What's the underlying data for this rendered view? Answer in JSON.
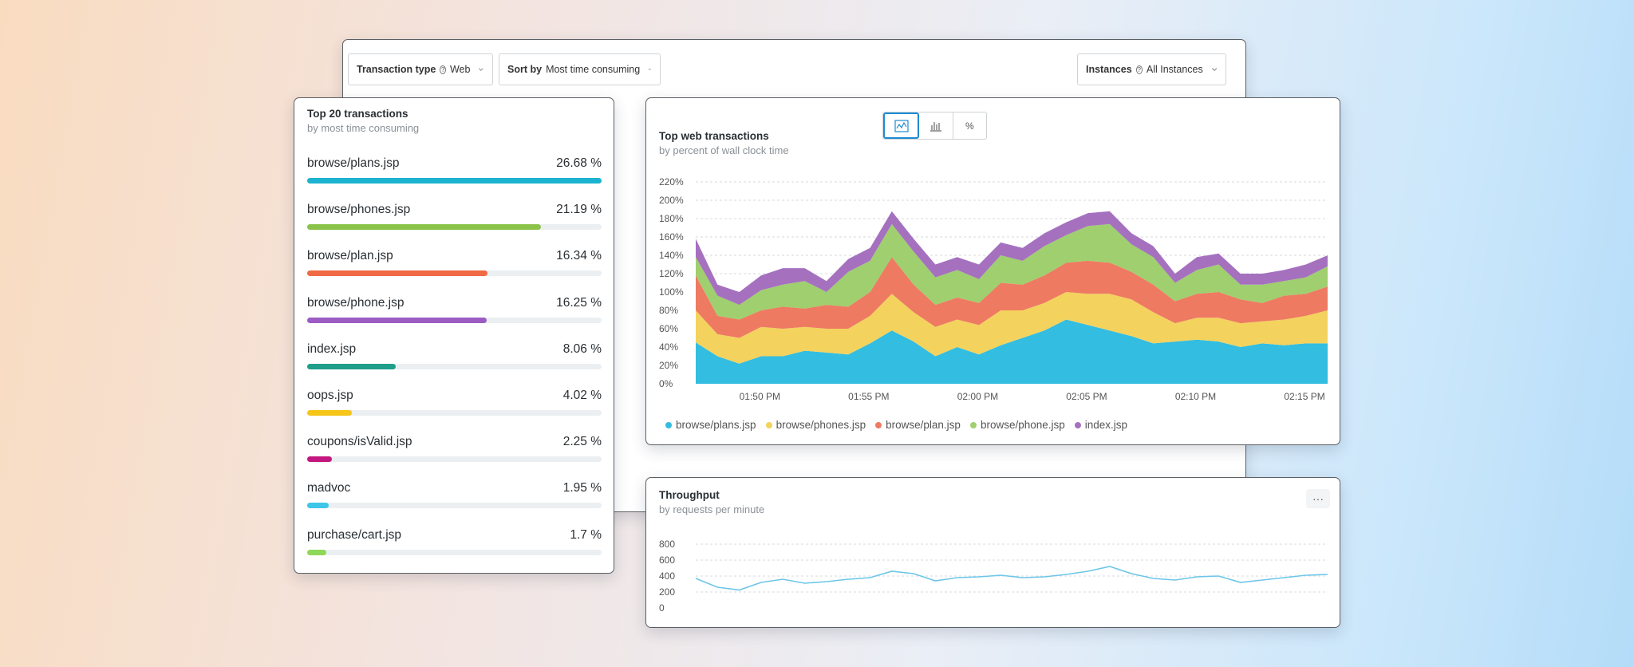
{
  "filters": {
    "transaction_type_label": "Transaction type",
    "transaction_type_value": "Web",
    "sort_by_label": "Sort by",
    "sort_by_value": "Most time consuming",
    "instances_label": "Instances",
    "instances_value": "All Instances"
  },
  "top_transactions": {
    "title": "Top 20 transactions",
    "subtitle": "by most time consuming",
    "items": [
      {
        "name": "browse/plans.jsp",
        "pct_label": "26.68 %",
        "fill": 1.0,
        "color": "#1bb3cf"
      },
      {
        "name": "browse/phones.jsp",
        "pct_label": "21.19 %",
        "fill": 0.794,
        "color": "#8bc34a"
      },
      {
        "name": "browse/plan.jsp",
        "pct_label": "16.34 %",
        "fill": 0.612,
        "color": "#ef6a45"
      },
      {
        "name": "browse/phone.jsp",
        "pct_label": "16.25 %",
        "fill": 0.609,
        "color": "#9b5cc4"
      },
      {
        "name": "index.jsp",
        "pct_label": "8.06 %",
        "fill": 0.302,
        "color": "#1f9e8a"
      },
      {
        "name": "oops.jsp",
        "pct_label": "4.02 %",
        "fill": 0.151,
        "color": "#f5c518"
      },
      {
        "name": "coupons/isValid.jsp",
        "pct_label": "2.25 %",
        "fill": 0.084,
        "color": "#c2187f"
      },
      {
        "name": "madvoc",
        "pct_label": "1.95 %",
        "fill": 0.073,
        "color": "#3ec6e8"
      },
      {
        "name": "purchase/cart.jsp",
        "pct_label": "1.7 %",
        "fill": 0.064,
        "color": "#8fd85a"
      }
    ]
  },
  "web_chart": {
    "title": "Top web transactions",
    "subtitle": "by percent of wall clock time",
    "toggles": [
      {
        "icon": "area-chart-icon",
        "label": "",
        "active": true
      },
      {
        "icon": "bar-chart-icon",
        "label": "",
        "active": false
      },
      {
        "icon": "percent-icon",
        "label": "%",
        "active": false
      }
    ]
  },
  "throughput": {
    "title": "Throughput",
    "subtitle": "by requests per minute",
    "more_label": "···"
  },
  "chart_data": [
    {
      "type": "area",
      "stacked": true,
      "title": "Top web transactions",
      "subtitle": "by percent of wall clock time",
      "x": [
        "01:48",
        "01:49",
        "01:50",
        "01:51",
        "01:52",
        "01:53",
        "01:54",
        "01:55",
        "01:56",
        "01:57",
        "01:58",
        "01:59",
        "02:00",
        "02:01",
        "02:02",
        "02:03",
        "02:04",
        "02:05",
        "02:06",
        "02:07",
        "02:08",
        "02:09",
        "02:10",
        "02:11",
        "02:12",
        "02:13",
        "02:14",
        "02:15",
        "02:16",
        "02:17"
      ],
      "x_tick_labels": [
        "01:50 PM",
        "01:55 PM",
        "02:00 PM",
        "02:05 PM",
        "02:10 PM",
        "02:15 PM"
      ],
      "x_tick_positions": [
        "01:50",
        "01:55",
        "02:00",
        "02:05",
        "02:10",
        "02:15"
      ],
      "y_tick_labels": [
        "0%",
        "20%",
        "40%",
        "60%",
        "80%",
        "100%",
        "120%",
        "140%",
        "160%",
        "180%",
        "200%",
        "220%"
      ],
      "ylim": [
        0,
        220
      ],
      "grid": true,
      "legend_position": "bottom-left",
      "series": [
        {
          "name": "browse/plans.jsp",
          "color": "#33bde0",
          "values": [
            45,
            30,
            22,
            30,
            30,
            36,
            34,
            32,
            44,
            58,
            46,
            30,
            40,
            32,
            42,
            50,
            58,
            70,
            64,
            58,
            52,
            44,
            46,
            48,
            46,
            40,
            44,
            42,
            44,
            44
          ]
        },
        {
          "name": "browse/phones.jsp",
          "color": "#f3d25e",
          "values": [
            35,
            24,
            28,
            32,
            30,
            26,
            26,
            28,
            30,
            40,
            32,
            32,
            30,
            32,
            38,
            30,
            30,
            30,
            34,
            40,
            40,
            34,
            20,
            24,
            26,
            26,
            24,
            28,
            30,
            36
          ]
        },
        {
          "name": "browse/plan.jsp",
          "color": "#ee7a62",
          "values": [
            38,
            20,
            20,
            18,
            24,
            20,
            26,
            24,
            26,
            40,
            30,
            24,
            24,
            24,
            30,
            28,
            30,
            32,
            36,
            34,
            30,
            30,
            24,
            26,
            28,
            26,
            20,
            26,
            24,
            26
          ]
        },
        {
          "name": "browse/phone.jsp",
          "color": "#9fcf6e",
          "values": [
            20,
            22,
            16,
            22,
            24,
            30,
            14,
            38,
            34,
            36,
            36,
            30,
            30,
            26,
            30,
            26,
            32,
            30,
            38,
            42,
            30,
            30,
            20,
            26,
            30,
            16,
            20,
            16,
            18,
            22
          ]
        },
        {
          "name": "index.jsp",
          "color": "#a571bf",
          "values": [
            20,
            12,
            14,
            16,
            18,
            14,
            12,
            14,
            14,
            14,
            14,
            14,
            14,
            16,
            14,
            14,
            14,
            14,
            14,
            14,
            12,
            12,
            10,
            14,
            12,
            12,
            12,
            12,
            14,
            12
          ]
        }
      ]
    },
    {
      "type": "line",
      "title": "Throughput",
      "subtitle": "by requests per minute",
      "y_tick_labels": [
        "0",
        "200",
        "400",
        "600",
        "800"
      ],
      "ylim": [
        0,
        800
      ],
      "grid": true,
      "series": [
        {
          "name": "",
          "color": "#6dc6e8",
          "values": [
            370,
            260,
            225,
            320,
            360,
            310,
            330,
            360,
            380,
            460,
            430,
            340,
            380,
            390,
            410,
            380,
            390,
            420,
            460,
            520,
            430,
            370,
            350,
            390,
            400,
            320,
            350,
            380,
            410,
            420
          ]
        }
      ]
    }
  ]
}
